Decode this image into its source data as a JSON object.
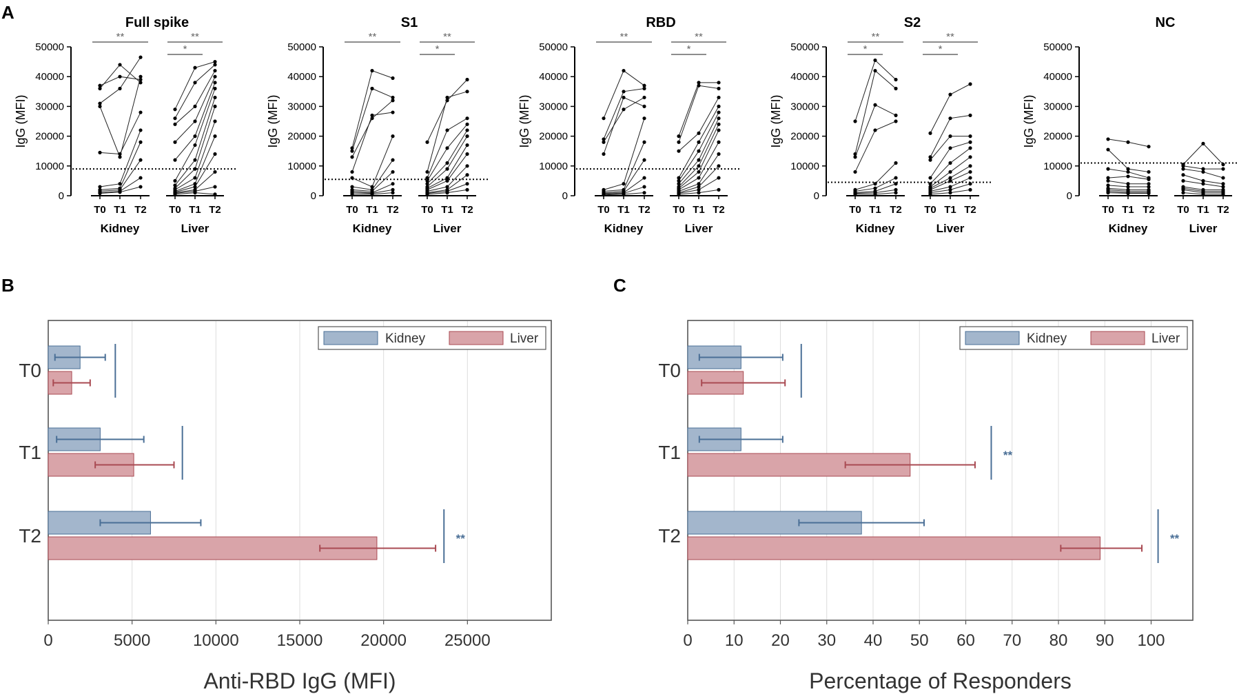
{
  "panel_labels": [
    "A",
    "B",
    "C"
  ],
  "colors": {
    "kidney": "#4a6f96",
    "liver": "#a94a52",
    "kidney_fill": "#a3b6cc",
    "liver_fill": "#d9a4a9"
  },
  "chart_data": [
    {
      "type": "line",
      "panel": "A",
      "title": "Full spike",
      "ylabel": "IgG (MFI)",
      "ylim": [
        0,
        50000
      ],
      "yticks": [
        "0",
        "10000",
        "20000",
        "30000",
        "40000",
        "50000"
      ],
      "timepoints": [
        "T0",
        "T1",
        "T2"
      ],
      "groups": [
        "Kidney",
        "Liver"
      ],
      "cutoff": 9000,
      "kidney": [
        [
          37000,
          40000,
          39000
        ],
        [
          36000,
          44000,
          38000
        ],
        [
          31000,
          36000,
          46500
        ],
        [
          30000,
          13000,
          40000
        ],
        [
          14500,
          14000,
          28000
        ],
        [
          3000,
          4000,
          22000
        ],
        [
          2000,
          2500,
          18000
        ],
        [
          1500,
          2000,
          12000
        ],
        [
          1000,
          1500,
          6000
        ],
        [
          800,
          1200,
          3000
        ]
      ],
      "liver": [
        [
          29000,
          43000,
          45000
        ],
        [
          26000,
          38000,
          44000
        ],
        [
          24000,
          30000,
          42000
        ],
        [
          18000,
          25000,
          40000
        ],
        [
          12000,
          20000,
          38000
        ],
        [
          5000,
          17000,
          36000
        ],
        [
          3500,
          12000,
          33000
        ],
        [
          2500,
          9000,
          30000
        ],
        [
          2000,
          6000,
          25000
        ],
        [
          1500,
          4000,
          20000
        ],
        [
          1200,
          3000,
          14000
        ],
        [
          1000,
          2000,
          8000
        ],
        [
          800,
          1500,
          3000
        ],
        [
          500,
          1000,
          500
        ]
      ],
      "sig": [
        {
          "a": 0,
          "b": 2,
          "level": 0,
          "label": "**"
        },
        {
          "a": 3,
          "b": 5,
          "level": 0,
          "label": "**"
        },
        {
          "a": 3,
          "b": 4,
          "level": 1,
          "label": "*"
        }
      ]
    },
    {
      "type": "line",
      "panel": "A",
      "title": "S1",
      "ylabel": "IgG (MFI)",
      "ylim": [
        0,
        50000
      ],
      "yticks": [
        "0",
        "10000",
        "20000",
        "30000",
        "40000",
        "50000"
      ],
      "timepoints": [
        "T0",
        "T1",
        "T2"
      ],
      "groups": [
        "Kidney",
        "Liver"
      ],
      "cutoff": 5500,
      "kidney": [
        [
          16000,
          42000,
          39500
        ],
        [
          15000,
          36000,
          33000
        ],
        [
          13000,
          26000,
          32000
        ],
        [
          8000,
          27000,
          28000
        ],
        [
          6000,
          3000,
          20000
        ],
        [
          3000,
          2000,
          12000
        ],
        [
          2000,
          1500,
          8000
        ],
        [
          1500,
          1000,
          4000
        ],
        [
          1000,
          800,
          2000
        ],
        [
          500,
          500,
          1000
        ]
      ],
      "liver": [
        [
          18000,
          32000,
          39000
        ],
        [
          8000,
          33000,
          35000
        ],
        [
          6000,
          22000,
          26000
        ],
        [
          5000,
          16000,
          24000
        ],
        [
          4000,
          11000,
          22000
        ],
        [
          3000,
          9000,
          20000
        ],
        [
          2500,
          6000,
          17000
        ],
        [
          2000,
          5000,
          14000
        ],
        [
          1500,
          3000,
          10000
        ],
        [
          1000,
          2000,
          7000
        ],
        [
          800,
          1500,
          4000
        ],
        [
          500,
          1000,
          2000
        ]
      ],
      "sig": [
        {
          "a": 0,
          "b": 2,
          "level": 0,
          "label": "**"
        },
        {
          "a": 3,
          "b": 5,
          "level": 0,
          "label": "**"
        },
        {
          "a": 3,
          "b": 4,
          "level": 1,
          "label": "*"
        }
      ]
    },
    {
      "type": "line",
      "panel": "A",
      "title": "RBD",
      "ylabel": "IgG (MFI)",
      "ylim": [
        0,
        50000
      ],
      "yticks": [
        "0",
        "10000",
        "20000",
        "30000",
        "40000",
        "50000"
      ],
      "timepoints": [
        "T0",
        "T1",
        "T2"
      ],
      "groups": [
        "Kidney",
        "Liver"
      ],
      "cutoff": 9000,
      "kidney": [
        [
          26000,
          42000,
          37000
        ],
        [
          19000,
          35000,
          36000
        ],
        [
          18000,
          29000,
          33000
        ],
        [
          14000,
          33000,
          30000
        ],
        [
          2000,
          4000,
          26000
        ],
        [
          1500,
          2000,
          18000
        ],
        [
          1000,
          1500,
          12000
        ],
        [
          800,
          1000,
          6000
        ],
        [
          500,
          800,
          3000
        ],
        [
          300,
          500,
          1000
        ]
      ],
      "liver": [
        [
          20000,
          38000,
          38000
        ],
        [
          18000,
          37000,
          36000
        ],
        [
          15000,
          21000,
          33000
        ],
        [
          6000,
          18000,
          30000
        ],
        [
          5000,
          15000,
          28000
        ],
        [
          4000,
          12000,
          26000
        ],
        [
          3000,
          10000,
          24000
        ],
        [
          2500,
          8000,
          22000
        ],
        [
          2000,
          6000,
          18000
        ],
        [
          1500,
          4000,
          14000
        ],
        [
          1000,
          3000,
          10000
        ],
        [
          800,
          2000,
          6000
        ],
        [
          500,
          1000,
          2000
        ]
      ],
      "sig": [
        {
          "a": 0,
          "b": 2,
          "level": 0,
          "label": "**"
        },
        {
          "a": 3,
          "b": 5,
          "level": 0,
          "label": "**"
        },
        {
          "a": 3,
          "b": 4,
          "level": 1,
          "label": "*"
        }
      ]
    },
    {
      "type": "line",
      "panel": "A",
      "title": "S2",
      "ylabel": "IgG (MFI)",
      "ylim": [
        0,
        50000
      ],
      "yticks": [
        "0",
        "10000",
        "20000",
        "30000",
        "40000",
        "50000"
      ],
      "timepoints": [
        "T0",
        "T1",
        "T2"
      ],
      "groups": [
        "Kidney",
        "Liver"
      ],
      "cutoff": 4500,
      "kidney": [
        [
          25000,
          45500,
          39000
        ],
        [
          14000,
          42000,
          36000
        ],
        [
          13000,
          30500,
          27000
        ],
        [
          8000,
          22000,
          25000
        ],
        [
          2000,
          4000,
          11000
        ],
        [
          1500,
          2500,
          6000
        ],
        [
          1000,
          1500,
          4000
        ],
        [
          800,
          1000,
          2000
        ],
        [
          500,
          500,
          1000
        ]
      ],
      "liver": [
        [
          21000,
          34000,
          37500
        ],
        [
          13000,
          26000,
          27000
        ],
        [
          12000,
          20000,
          20000
        ],
        [
          6000,
          16000,
          18000
        ],
        [
          4000,
          11000,
          16000
        ],
        [
          3000,
          8000,
          13000
        ],
        [
          2500,
          6000,
          10000
        ],
        [
          2000,
          5000,
          8000
        ],
        [
          1500,
          3000,
          6000
        ],
        [
          1000,
          2000,
          4000
        ],
        [
          500,
          1000,
          2000
        ]
      ],
      "sig": [
        {
          "a": 0,
          "b": 2,
          "level": 0,
          "label": "**"
        },
        {
          "a": 0,
          "b": 1,
          "level": 1,
          "label": "*"
        },
        {
          "a": 3,
          "b": 5,
          "level": 0,
          "label": "**"
        },
        {
          "a": 3,
          "b": 4,
          "level": 1,
          "label": "*"
        }
      ]
    },
    {
      "type": "line",
      "panel": "A",
      "title": "NC",
      "ylabel": "IgG (MFI)",
      "ylim": [
        0,
        50000
      ],
      "yticks": [
        "0",
        "10000",
        "20000",
        "30000",
        "40000",
        "50000"
      ],
      "timepoints": [
        "T0",
        "T1",
        "T2"
      ],
      "groups": [
        "Kidney",
        "Liver"
      ],
      "cutoff": 11000,
      "kidney": [
        [
          19000,
          18000,
          16500
        ],
        [
          15500,
          9000,
          8000
        ],
        [
          9000,
          8000,
          6000
        ],
        [
          6000,
          6500,
          5500
        ],
        [
          5000,
          4000,
          4000
        ],
        [
          3500,
          3000,
          3000
        ],
        [
          2500,
          2000,
          2000
        ],
        [
          2000,
          1500,
          1500
        ],
        [
          1500,
          1000,
          1000
        ],
        [
          1000,
          800,
          800
        ]
      ],
      "liver": [
        [
          10500,
          17500,
          10500
        ],
        [
          10000,
          9000,
          9000
        ],
        [
          9000,
          8000,
          6000
        ],
        [
          7000,
          5000,
          4000
        ],
        [
          5000,
          4000,
          3000
        ],
        [
          3000,
          2000,
          2000
        ],
        [
          2500,
          1500,
          1500
        ],
        [
          2000,
          1000,
          1000
        ],
        [
          1000,
          500,
          500
        ]
      ],
      "sig": []
    },
    {
      "type": "bar",
      "panel": "B",
      "orientation": "horizontal",
      "categories": [
        "T0",
        "T1",
        "T2"
      ],
      "series": [
        {
          "name": "Kidney",
          "values": [
            1900,
            3100,
            6100
          ],
          "err_low": [
            400,
            500,
            3100
          ],
          "err_high": [
            3400,
            5700,
            9100
          ]
        },
        {
          "name": "Liver",
          "values": [
            1400,
            5100,
            19600
          ],
          "err_low": [
            300,
            2800,
            16200
          ],
          "err_high": [
            2500,
            7500,
            23100
          ]
        }
      ],
      "xlabel": "Anti-RBD IgG (MFI)",
      "xlim": [
        0,
        30000
      ],
      "xticks": [
        "0",
        "5000",
        "10000",
        "15000",
        "20000",
        "25000"
      ],
      "comparisons": [
        {
          "category": "T0",
          "value": 4000,
          "label": ""
        },
        {
          "category": "T1",
          "value": 8000,
          "label": ""
        },
        {
          "category": "T2",
          "value": 23600,
          "label": "**"
        }
      ],
      "legend": [
        "Kidney",
        "Liver"
      ]
    },
    {
      "type": "bar",
      "panel": "C",
      "orientation": "horizontal",
      "categories": [
        "T0",
        "T1",
        "T2"
      ],
      "series": [
        {
          "name": "Kidney",
          "values": [
            11.5,
            11.5,
            37.5
          ],
          "err_low": [
            2.5,
            2.5,
            24
          ],
          "err_high": [
            20.5,
            20.5,
            51
          ]
        },
        {
          "name": "Liver",
          "values": [
            12,
            48,
            89
          ],
          "err_low": [
            3,
            34,
            80.5
          ],
          "err_high": [
            21,
            62,
            98
          ]
        }
      ],
      "xlabel": "Percentage of Responders",
      "xlim": [
        0,
        109
      ],
      "xticks": [
        "0",
        "10",
        "20",
        "30",
        "40",
        "50",
        "60",
        "70",
        "80",
        "90",
        "100"
      ],
      "comparisons": [
        {
          "category": "T0",
          "value": 24.5,
          "label": ""
        },
        {
          "category": "T1",
          "value": 65.5,
          "label": "**"
        },
        {
          "category": "T2",
          "value": 101.5,
          "label": "**"
        }
      ],
      "legend": [
        "Kidney",
        "Liver"
      ]
    }
  ]
}
